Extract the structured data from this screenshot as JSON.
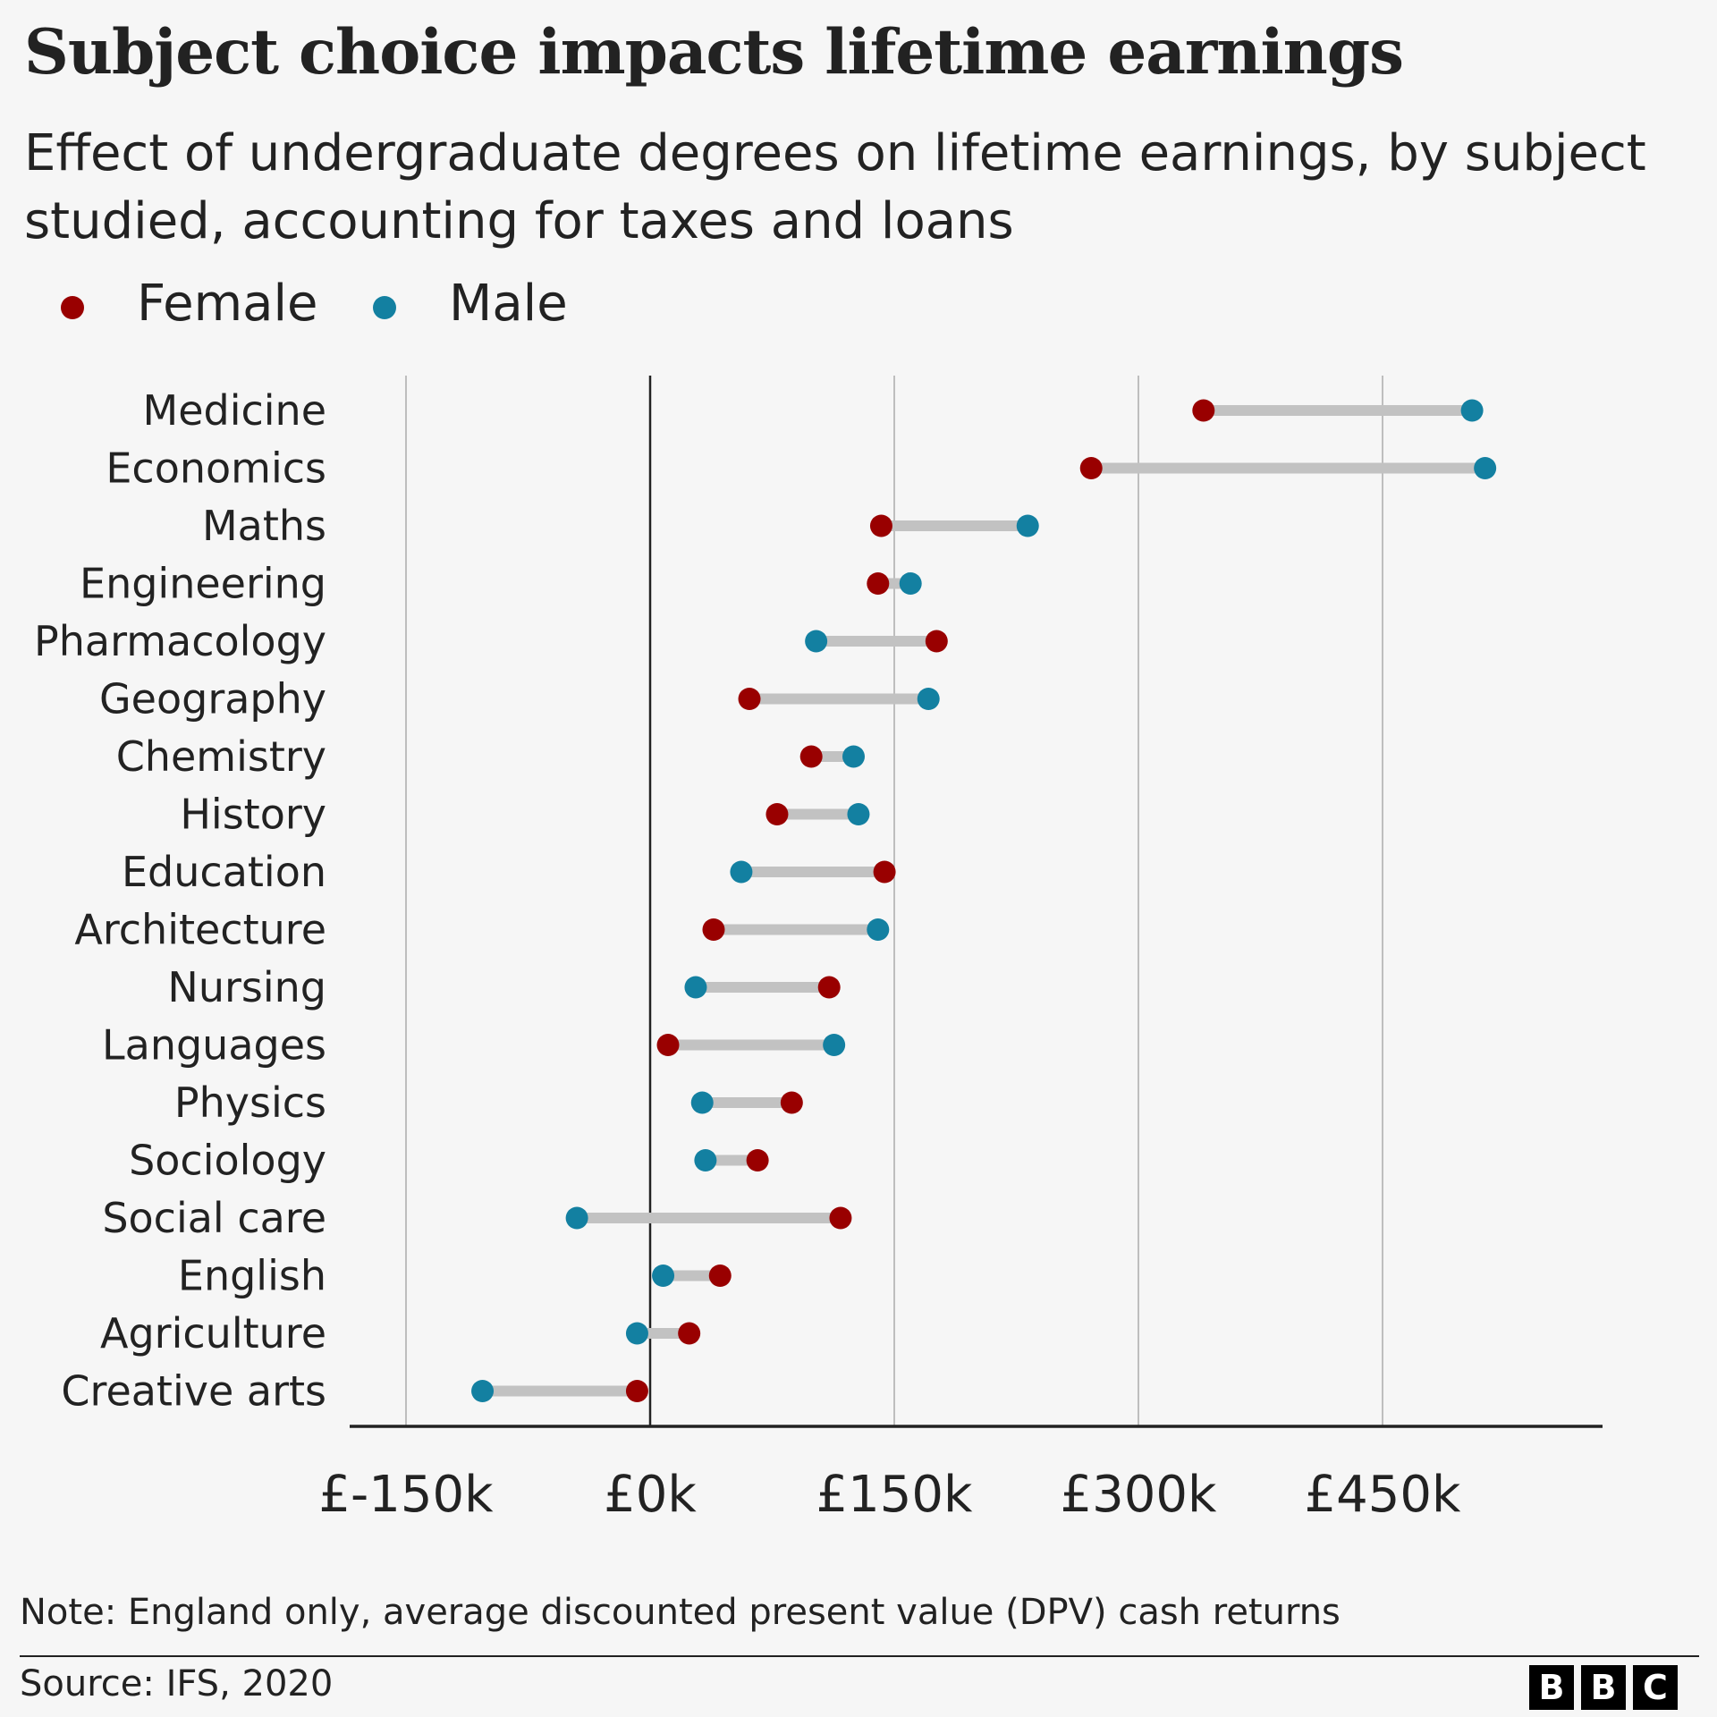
{
  "header": {
    "title": "Subject choice impacts lifetime earnings",
    "subtitle": "Effect of undergraduate degrees on lifetime earnings, by subject studied, accounting for taxes and loans"
  },
  "legend": {
    "female_label": "Female",
    "male_label": "Male"
  },
  "colors": {
    "female": "#990000",
    "male": "#1380a1",
    "connector": "#c2c2c2",
    "grid": "#9a9a9a",
    "axis": "#222222"
  },
  "chart_data": {
    "type": "dumbbell",
    "title": "Subject choice impacts lifetime earnings",
    "subtitle": "Effect of undergraduate degrees on lifetime earnings, by subject studied, accounting for taxes and loans",
    "xlabel": "",
    "ylabel": "",
    "xlim": [
      -200,
      585
    ],
    "xticks": [
      -150,
      0,
      150,
      300,
      450
    ],
    "xtick_labels": [
      "£-150k",
      "£0k",
      "£150k",
      "£300k",
      "£450k"
    ],
    "zero_line": 0,
    "grid": true,
    "legend_position": "top-left",
    "categories": [
      "Medicine",
      "Economics",
      "Maths",
      "Engineering",
      "Pharmacology",
      "Geography",
      "Chemistry",
      "History",
      "Education",
      "Architecture",
      "Nursing",
      "Languages",
      "Physics",
      "Sociology",
      "Social care",
      "English",
      "Agriculture",
      "Creative arts"
    ],
    "series": [
      {
        "name": "Female",
        "values": [
          340,
          271,
          142,
          140,
          176,
          61,
          99,
          78,
          144,
          39,
          110,
          11,
          87,
          66,
          117,
          43,
          24,
          -8
        ]
      },
      {
        "name": "Male",
        "values": [
          505,
          513,
          232,
          160,
          102,
          171,
          125,
          128,
          56,
          140,
          28,
          113,
          32,
          34,
          -45,
          8,
          -8,
          -103
        ]
      }
    ],
    "units": "£ thousands"
  },
  "footer": {
    "note": "Note: England only, average discounted present value (DPV) cash returns",
    "source": "Source: IFS, 2020",
    "logo_letters": [
      "B",
      "B",
      "C"
    ]
  }
}
